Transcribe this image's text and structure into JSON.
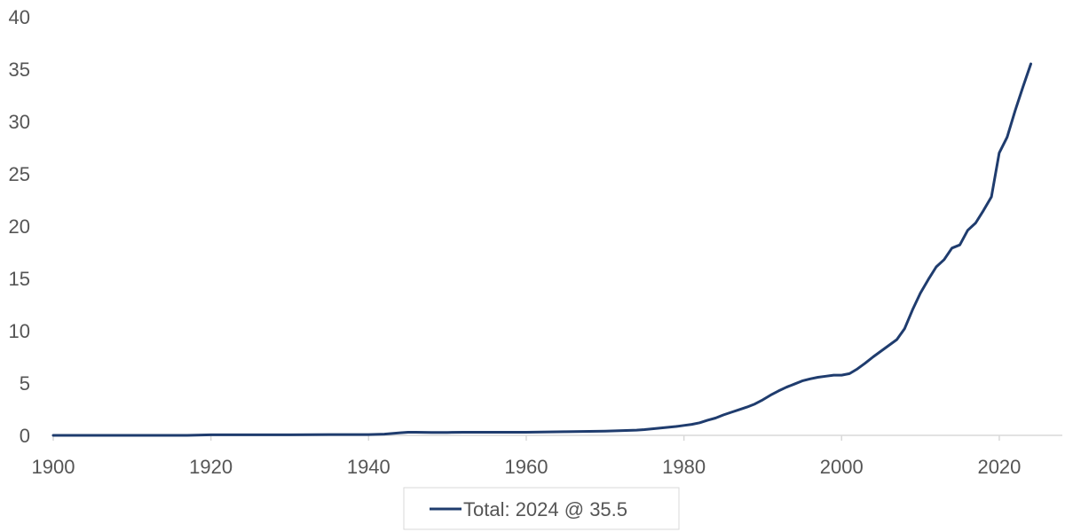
{
  "chart_data": {
    "type": "line",
    "title": "",
    "xlabel": "",
    "ylabel": "",
    "xlim": [
      1900,
      2028
    ],
    "ylim": [
      0,
      40
    ],
    "x_ticks": [
      "1900",
      "1920",
      "1940",
      "1960",
      "1980",
      "2000",
      "2020"
    ],
    "y_ticks": [
      "0",
      "5",
      "10",
      "15",
      "20",
      "25",
      "30",
      "35",
      "40"
    ],
    "grid": false,
    "legend": {
      "position": "bottom-center"
    },
    "series": [
      {
        "name": "Total: 2024 @ 35.5",
        "color": "#1f3c6e",
        "x": [
          1900,
          1910,
          1917,
          1920,
          1930,
          1935,
          1940,
          1942,
          1944,
          1945,
          1946,
          1948,
          1950,
          1952,
          1955,
          1960,
          1965,
          1970,
          1974,
          1975,
          1977,
          1979,
          1980,
          1981,
          1982,
          1983,
          1984,
          1985,
          1986,
          1987,
          1988,
          1989,
          1990,
          1991,
          1992,
          1993,
          1994,
          1995,
          1996,
          1997,
          1998,
          1999,
          2000,
          2001,
          2002,
          2003,
          2004,
          2005,
          2006,
          2007,
          2008,
          2009,
          2010,
          2011,
          2012,
          2013,
          2014,
          2015,
          2016,
          2017,
          2018,
          2019,
          2020,
          2021,
          2022,
          2023,
          2024
        ],
        "y": [
          0.0,
          0.0,
          0.0,
          0.05,
          0.05,
          0.08,
          0.08,
          0.12,
          0.25,
          0.3,
          0.3,
          0.28,
          0.28,
          0.3,
          0.3,
          0.3,
          0.35,
          0.4,
          0.5,
          0.55,
          0.7,
          0.85,
          0.95,
          1.05,
          1.2,
          1.45,
          1.65,
          1.95,
          2.2,
          2.45,
          2.7,
          3.0,
          3.4,
          3.85,
          4.25,
          4.6,
          4.9,
          5.2,
          5.4,
          5.55,
          5.65,
          5.75,
          5.75,
          5.9,
          6.35,
          6.9,
          7.5,
          8.05,
          8.6,
          9.15,
          10.2,
          12.0,
          13.6,
          14.9,
          16.1,
          16.8,
          17.9,
          18.2,
          19.6,
          20.3,
          21.5,
          22.8,
          27.0,
          28.5,
          31.0,
          33.3,
          35.5
        ]
      }
    ]
  }
}
